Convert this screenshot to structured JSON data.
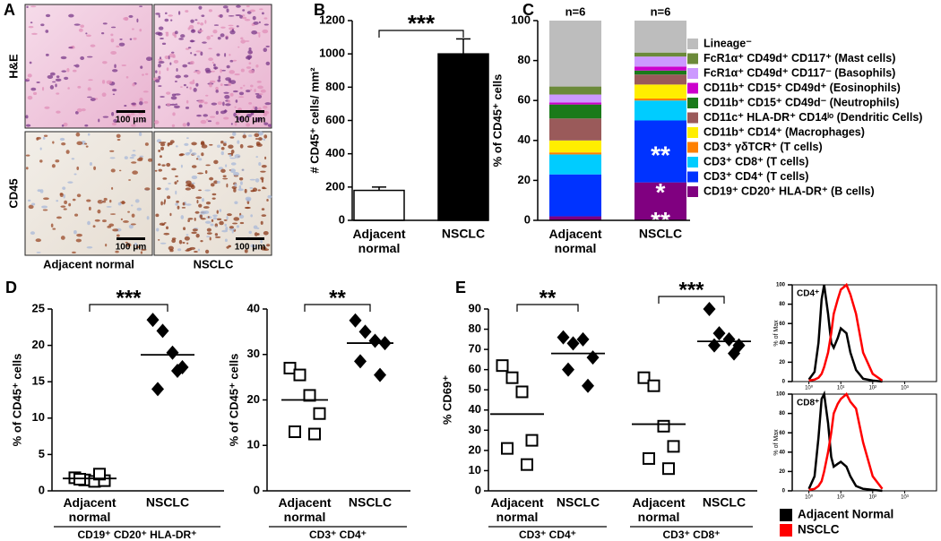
{
  "panel_a": {
    "label": "A",
    "row_labels": [
      "H&E",
      "CD45"
    ],
    "scale_bar": "100 μm",
    "column_labels": [
      "Adjacent normal",
      "NSCLC"
    ]
  },
  "chart_data": [
    {
      "type": "bar",
      "panel_label": "B",
      "ylabel": "# CD45⁺ cells/ mm²",
      "categories": [
        "Adjacent\nnormal",
        "NSCLC"
      ],
      "values": [
        180,
        1000
      ],
      "errors": [
        20,
        90
      ],
      "colors": [
        "#ffffff",
        "#000000"
      ],
      "ylim": [
        0,
        1200
      ],
      "yticks": [
        0,
        200,
        400,
        600,
        800,
        1000,
        1200
      ],
      "significance": "***"
    },
    {
      "type": "stacked_bar",
      "panel_label": "C",
      "ylabel": "% of CD45⁺ cells",
      "categories": [
        "Adjacent\nnormal",
        "NSCLC"
      ],
      "bar_labels": [
        "n=6",
        "n=6"
      ],
      "legend": "right",
      "series": [
        {
          "name": "Lineage⁻",
          "color": "#bdbdbd",
          "values": [
            33,
            16
          ]
        },
        {
          "name": "FcR1α⁺ CD49d⁺ CD117⁺ (Mast cells)",
          "color": "#6b8a3a",
          "values": [
            4,
            2
          ]
        },
        {
          "name": "FcR1α⁺ CD49d⁺ CD117⁻ (Basophils)",
          "color": "#cc99ff",
          "values": [
            4,
            5
          ]
        },
        {
          "name": "CD11b⁺ CD15⁺ CD49d⁺ (Eosinophils)",
          "color": "#cc00cc",
          "values": [
            1,
            2
          ]
        },
        {
          "name": "CD11b⁺ CD15⁺ CD49d⁻ (Neutrophils)",
          "color": "#1a7a1a",
          "values": [
            7,
            2
          ]
        },
        {
          "name": "CD11c⁺ HLA-DR⁺ CD14ˡᵒ (Dendritic Cells)",
          "color": "#9a5a5a",
          "values": [
            11,
            5
          ]
        },
        {
          "name": "CD11b⁺ CD14⁺ (Macrophages)",
          "color": "#ffee00",
          "values": [
            6,
            7
          ]
        },
        {
          "name": "CD3⁺ γδTCR⁺ (T cells)",
          "color": "#ff8000",
          "values": [
            1,
            1
          ]
        },
        {
          "name": "CD3⁺ CD8⁺ (T cells)",
          "color": "#00ccff",
          "values": [
            10,
            10
          ]
        },
        {
          "name": "CD3⁺ CD4⁺ (T cells)",
          "color": "#0033ff",
          "values": [
            21,
            31
          ]
        },
        {
          "name": "CD19⁺ CD20⁺ HLA-DR⁺ (B cells)",
          "color": "#800080",
          "values": [
            2,
            19
          ]
        }
      ],
      "annotations": [
        "**",
        "*\n**"
      ],
      "ylim": [
        0,
        100
      ],
      "yticks": [
        0,
        20,
        40,
        60,
        80,
        100
      ]
    },
    {
      "type": "dot",
      "panel_label": "D",
      "ylabel": "% of CD45⁺ cells",
      "categories": [
        "Adjacent\nnormal",
        "NSCLC"
      ],
      "markers": [
        "open-square",
        "diamond"
      ],
      "values": [
        [
          1.8,
          1.5,
          1.3,
          1.4,
          1.6,
          2.3
        ],
        [
          23.5,
          22,
          19,
          17,
          14,
          16.5
        ]
      ],
      "means": [
        1.7,
        18.7
      ],
      "groups": [
        {
          "label": "CD19⁺ CD20⁺ HLA-DR⁺",
          "significance": "***"
        }
      ],
      "ylim": [
        0,
        25
      ],
      "yticks": [
        0,
        5,
        10,
        15,
        20,
        25
      ]
    },
    {
      "type": "dot",
      "ylabel": "% of CD45⁺ cells",
      "categories": [
        "Adjacent\nnormal",
        "NSCLC"
      ],
      "markers": [
        "open-square",
        "diamond"
      ],
      "values": [
        [
          27,
          25.5,
          21,
          17,
          13,
          12.5
        ],
        [
          37.5,
          35,
          33,
          32.5,
          28.5,
          25.5
        ]
      ],
      "means": [
        20,
        32.5
      ],
      "groups": [
        {
          "label": "CD3⁺ CD4⁺",
          "significance": "**"
        }
      ],
      "ylim": [
        0,
        40
      ],
      "yticks": [
        0,
        10,
        20,
        30,
        40
      ]
    },
    {
      "type": "dot",
      "panel_label": "E",
      "ylabel": "% CD69⁺",
      "categories": [
        "Adjacent\nnormal",
        "NSCLC",
        "Adjacent\nnormal",
        "NSCLC"
      ],
      "markers": [
        "open-square",
        "diamond",
        "open-square",
        "diamond"
      ],
      "values": [
        [
          62,
          56,
          49,
          25,
          21,
          13
        ],
        [
          76,
          73,
          75,
          66,
          60,
          52
        ],
        [
          56,
          52,
          32,
          22,
          16,
          11
        ],
        [
          90,
          78,
          75,
          72,
          72,
          68
        ]
      ],
      "means": [
        38,
        68,
        33,
        74
      ],
      "groups": [
        {
          "label": "CD3⁺ CD4⁺",
          "significance": "**"
        },
        {
          "label": "CD3⁺ CD8⁺",
          "significance": "***"
        }
      ],
      "ylim": [
        0,
        90
      ],
      "yticks": [
        0,
        10,
        20,
        30,
        40,
        50,
        60,
        70,
        80,
        90
      ]
    },
    {
      "type": "line",
      "title": "CD4⁺",
      "ylabel": "% of Max",
      "xscale": "log",
      "legend": "bottom",
      "x": [
        1,
        1.5,
        2,
        2.5,
        3,
        4,
        5,
        6,
        8,
        10,
        15,
        20,
        30,
        50,
        100,
        200
      ],
      "series": [
        {
          "name": "Adjacent Normal",
          "color": "#000000",
          "values": [
            2,
            10,
            40,
            85,
            100,
            70,
            40,
            35,
            45,
            55,
            50,
            30,
            12,
            3,
            1,
            0
          ]
        },
        {
          "name": "NSCLC",
          "color": "#ff0000",
          "values": [
            1,
            2,
            4,
            8,
            15,
            30,
            50,
            70,
            85,
            95,
            100,
            90,
            70,
            30,
            8,
            1
          ]
        }
      ],
      "xlim": [
        0.3,
        10000
      ],
      "xticks": [
        {
          "value": 1,
          "label": "10⁰"
        },
        {
          "value": 10,
          "label": "10¹"
        },
        {
          "value": 100,
          "label": "10²"
        },
        {
          "value": 1000,
          "label": "10³"
        }
      ],
      "ylim": [
        0,
        100
      ],
      "yticks": [
        0,
        20,
        40,
        60,
        80,
        100
      ]
    },
    {
      "type": "line",
      "title": "CD8⁺",
      "ylabel": "% of Max",
      "xscale": "log",
      "x": [
        1,
        1.5,
        2,
        2.5,
        3,
        4,
        5,
        6,
        8,
        10,
        15,
        20,
        30,
        50,
        100,
        200
      ],
      "series": [
        {
          "color": "#000000",
          "values": [
            2,
            15,
            55,
            95,
            100,
            70,
            35,
            25,
            28,
            30,
            25,
            15,
            5,
            2,
            1,
            0
          ]
        },
        {
          "color": "#ff0000",
          "values": [
            1,
            2,
            5,
            10,
            20,
            40,
            60,
            80,
            90,
            95,
            100,
            92,
            85,
            50,
            15,
            2
          ]
        }
      ],
      "xlim": [
        0.3,
        10000
      ],
      "xticks": [
        {
          "value": 1,
          "label": "10⁰"
        },
        {
          "value": 10,
          "label": "10¹"
        },
        {
          "value": 100,
          "label": "10²"
        },
        {
          "value": 1000,
          "label": "10³"
        }
      ],
      "ylim": [
        0,
        100
      ],
      "yticks": [
        0,
        20,
        40,
        60,
        80,
        100
      ]
    }
  ]
}
